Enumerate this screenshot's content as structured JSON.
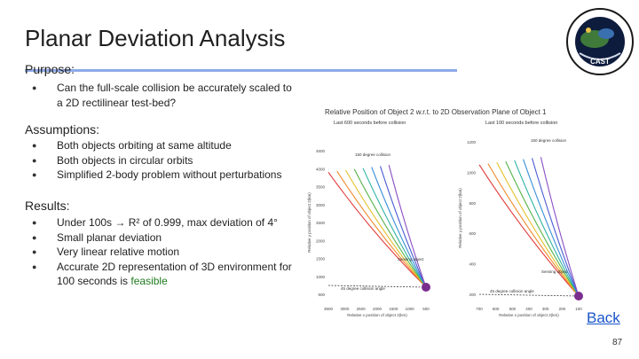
{
  "slide": {
    "title": "Planar Deviation Analysis",
    "purpose_heading": "Purpose:",
    "purpose_items": [
      "Can the full-scale collision be accurately scaled to",
      "a 2D rectilinear test-bed?"
    ],
    "assumptions_heading": "Assumptions:",
    "assumptions_items": [
      "Both objects orbiting at same altitude",
      "Both objects in circular orbits",
      "Simplified 2-body problem without perturbations"
    ],
    "results_heading": "Results:",
    "results_items": [
      "Under 100s → R² of 0.999, max deviation of 4°",
      "Small planar deviation",
      "Very linear relative motion",
      "Accurate 2D representation of 3D environment for"
    ],
    "results_tail_prefix": "100 seconds is ",
    "results_tail_word": "feasible",
    "back_label": "Back",
    "page_number": "87"
  },
  "colors": {
    "accent_rule": "#8ea9e8",
    "link": "#1a55c8",
    "feasible": "#1e7b1e",
    "marker": "#7a2e8e"
  },
  "icons": {
    "logo": "cast-mission-patch"
  },
  "chart_data": {
    "type": "line",
    "title": "Relative Position of Object 2 w.r.t. to 2D Observation Plane of Object 1",
    "panels": [
      {
        "subtitle": "Last 600 seconds before collision",
        "xlabel": "Relative x position of object 2(km)",
        "ylabel": "Relative y position of object 2(km)",
        "x_ticks": [
          "3500",
          "3000",
          "2500",
          "2000",
          "1500",
          "1000",
          "500"
        ],
        "y_ticks": [
          "4500",
          "4000",
          "3500",
          "3000",
          "2500",
          "2000",
          "1500",
          "1000",
          "500"
        ],
        "annotations": [
          "150 degree collision",
          "Sensing object",
          "45 degree collision angle"
        ],
        "collision_angles_deg": [
          45,
          60,
          75,
          90,
          105,
          120,
          135,
          150
        ]
      },
      {
        "subtitle": "Last 100 seconds before collision",
        "xlabel": "Relative x position of object 2(km)",
        "ylabel": "Relative y position of object 2(km)",
        "x_ticks": [
          "700",
          "600",
          "500",
          "400",
          "300",
          "200",
          "100"
        ],
        "y_ticks": [
          "1200",
          "1000",
          "800",
          "600",
          "400",
          "200"
        ],
        "annotations": [
          "150 degree collision",
          "Sensing object",
          "45 degree collision angle"
        ],
        "collision_angles_deg": [
          45,
          60,
          75,
          90,
          105,
          120,
          135,
          150
        ]
      }
    ]
  }
}
